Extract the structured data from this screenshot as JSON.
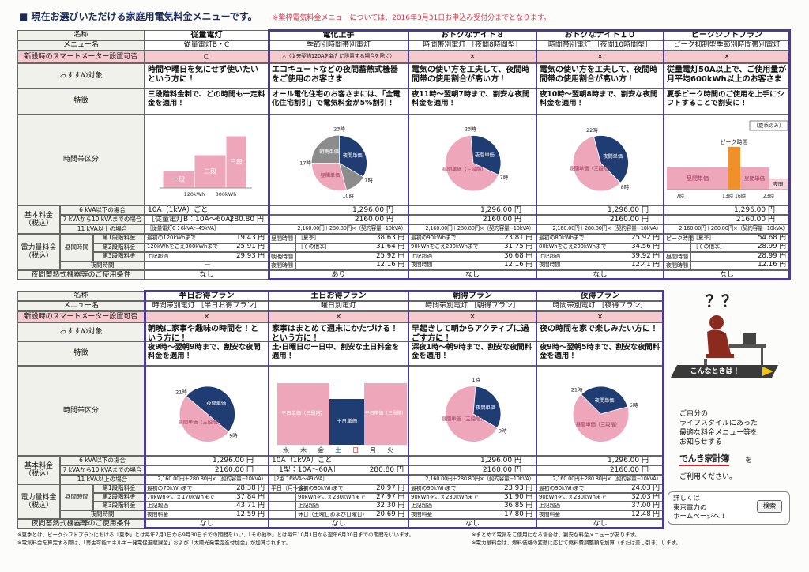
{
  "header": {
    "title": "■ 現在お選びいただける家庭用電気料金メニューです。",
    "note": "※紫枠電気料金メニューについては、2016年3月31日お申込み受付分までとなります。"
  },
  "top": {
    "labels": {
      "name": "名称",
      "menu": "メニュー名",
      "smart": "新設時のスマートメーター設置可否",
      "target": "おすすめ対象",
      "feature": "特徴",
      "chart": "時間帯区分",
      "basic": "基本料金（税込）",
      "basic_rows": [
        "6 kVA以下の場合",
        "7 kVAから10 kVAまでの場合",
        "11 kVA以上の場合"
      ],
      "energy": "電力量料金（税込）",
      "daytime": "昼間時間",
      "steps": [
        "第1段階料金",
        "第2段階料金",
        "第3段階料金"
      ],
      "night": "夜間時間",
      "condition": "夜間蓄熱式機器等のご使用条件"
    },
    "plans": [
      {
        "name": "従量電灯",
        "menu": "従量電灯B・C",
        "smart": "○",
        "target": "時間や曜日を気にせず使いたいという方に！",
        "feature": "三段階料金制で、どの時間も一定料金を適用！",
        "chart": [
          "一段",
          "二段",
          "三段",
          "120kWh",
          "300kWh"
        ],
        "basic": {
          "rows": [
            "10A（1kVA）ごと",
            "［従量電灯B：10A～60A］",
            "［従量電灯C：6kVA～49kVA］"
          ],
          "price": "280.80 円"
        },
        "energy": [
          {
            "text": "最初の120kWhまで",
            "price": "19.43 円"
          },
          {
            "text": "120kWhをこえ300kWhまで",
            "price": "25.91 円"
          },
          {
            "text": "上記超過",
            "price": "29.93 円"
          },
          {
            "text": "―"
          }
        ],
        "condition": "なし"
      },
      {
        "name": "電化上手",
        "menu": "季節別時間帯別電灯",
        "smart": "△（従来契約120Aを新たに設置する場合を除く）",
        "target": "エコキュートなどの夜間蓄熱式機器をご使用のお客さま",
        "feature": "オール電化住宅のお客さまには、「全電化住宅割引」で電気料金が5%割引！",
        "chart": [
          "23時",
          "7時",
          "10時",
          "17時",
          "夜間単価",
          "朝晩単価",
          "昼間単価"
        ],
        "basic": {
          "rows": [
            "1,296.00 円",
            "2160.00 円",
            "2,160.00円＋280.80円×（契約容量−10kVA）"
          ]
        },
        "energy": [
          {
            "label": "昼間時間",
            "text": "［夏季］",
            "price": "38.63 円"
          },
          {
            "text": "［その他季］",
            "price": "31.64 円"
          },
          {
            "label": "朝晩時間",
            "price": "25.92 円"
          },
          {
            "label": "夜間時間",
            "price": "12.16 円"
          }
        ],
        "condition": "あり"
      },
      {
        "name": "おトクなナイト８",
        "menu": "時間帯別電灯 ［夜間8時間型］",
        "smart": "×",
        "target": "電気の使い方を工夫して、夜間時間帯の使用割合が高い方！",
        "feature": "夜11時～翌朝7時まで、割安な夜間料金を適用！",
        "chart": [
          "23時",
          "7時",
          "夜間単価",
          "昼間単価（三段階）"
        ],
        "basic": {
          "rows": [
            "1,296.00 円",
            "2160.00 円",
            "2,160.00円＋280.80円×（契約容量−10kVA）"
          ]
        },
        "energy": [
          {
            "text": "最初の90kWhまで",
            "price": "23.81 円"
          },
          {
            "text": "90kWhをこえ230kWhまで",
            "price": "31.75 円"
          },
          {
            "text": "上記超過",
            "price": "36.68 円"
          },
          {
            "text": "夜間時間",
            "price": "12.16 円"
          }
        ],
        "condition": "なし"
      },
      {
        "name": "おトクなナイト１０",
        "menu": "時間帯別電灯 ［夜間10時間型］",
        "smart": "×",
        "target": "電気の使い方を工夫して、夜間時間帯の使用割合が高い方！",
        "feature": "夜10時～翌朝8時まで、割安な夜間料金を適用！",
        "chart": [
          "22時",
          "8時",
          "夜間単価",
          "昼間単価（三段階）"
        ],
        "basic": {
          "rows": [
            "1,296.00 円",
            "2160.00 円",
            "2,160.00円＋280.80円×（契約容量−10kVA）"
          ]
        },
        "energy": [
          {
            "text": "最初の80kWhまで",
            "price": "25.92 円"
          },
          {
            "text": "80kWhをこえ200kWhまで",
            "price": "34.56 円"
          },
          {
            "text": "上記超過",
            "price": "39.92 円"
          },
          {
            "text": "夜間時間",
            "price": "12.41 円"
          }
        ],
        "condition": "なし"
      },
      {
        "name": "ピークシフトプラン",
        "menu": "ピーク抑制型季節別時間帯別電灯",
        "smart": "×",
        "target": "従量電灯50A以上で、ご使用量が月平均600kWh以上のお客さま",
        "feature": "夏季ピーク時間のご使用を上手にシフトすることで割安に！",
        "chart": [
          "（夏季のみ）",
          "ピーク時間",
          "昼間単価",
          "昼間単価",
          "夜間",
          "7時",
          "13時",
          "16時",
          "23時"
        ],
        "basic": {
          "rows": [
            "1,296.00 円",
            "2160.00 円",
            "2,160.00円＋280.80円×（契約容量−10kVA）"
          ]
        },
        "energy": [
          {
            "label": "ピーク時間",
            "text": "［夏季］",
            "price": "54.68 円"
          },
          {
            "text": "［その他季］",
            "price": "28.99 円"
          },
          {
            "label": "昼間時間",
            "price": "28.99 円"
          },
          {
            "label": "夜間時間",
            "price": "12.16 円"
          }
        ],
        "condition": "なし"
      }
    ]
  },
  "bottom": {
    "labels": {
      "name": "名称",
      "menu": "メニュー名",
      "smart": "新設時のスマートメーター設置可否",
      "target": "おすすめ対象",
      "feature": "特徴",
      "chart": "時間帯区分",
      "basic": "基本料金（税込）",
      "basic_rows": [
        "6 kVA以下の場合",
        "7 kVAから10 kVAまでの場合",
        "11 kVA以上の場合"
      ],
      "energy": "電力量料金（税込）",
      "daytime": "昼間時間",
      "steps": [
        "第1段階料金",
        "第2段階料金",
        "第3段階料金"
      ],
      "night": "夜間時間",
      "condition": "夜間蓄熱式機器等のご使用条件"
    },
    "plans": [
      {
        "name": "半日お得プラン",
        "menu": "時間帯別電灯 ［半日お得プラン］",
        "smart": "×",
        "target": "朝晩に家事や趣味の時間を！という方に！",
        "feature": "夜9時～翌朝9時まで、割安な夜間料金を適用！",
        "chart": [
          "21時",
          "9時",
          "夜間単価",
          "昼間単価（三段階）"
        ],
        "basic": {
          "rows": [
            "1,296.00 円",
            "2160.00 円",
            "2,160.00円＋280.80円×（契約容量−10kVA）"
          ]
        },
        "energy": [
          {
            "text": "最初の70kWhまで",
            "price": "28.38 円"
          },
          {
            "text": "70kWhをこえ170kWhまで",
            "price": "37.84 円"
          },
          {
            "text": "上記超過",
            "price": "43.71 円"
          },
          {
            "text": "夜間料金",
            "price": "12.59 円"
          }
        ],
        "condition": "なし"
      },
      {
        "name": "土日お得プラン",
        "menu": "曜日別電灯",
        "smart": "×",
        "target": "家事はまとめて週末にかたづける！という方に！",
        "feature": "土・日曜日の一日中、割安な土日料金を適用！",
        "chart": [
          "平日単価（三段階）",
          "土日単価",
          "平日単価（三段階）",
          "水",
          "木",
          "金",
          "土",
          "日",
          "月",
          "火"
        ],
        "basic": {
          "rows": [
            "10A（1kVA）ごと",
            "［1型：10A～60A］",
            "［2型：6kVA～49kVA］"
          ],
          "price": "280.80 円"
        },
        "energy": [
          {
            "label": "平日（月～金）",
            "text": "最初の90kWhまで",
            "price": "20.97 円"
          },
          {
            "text": "90kWhをこえ230kWhまで",
            "price": "27.97 円"
          },
          {
            "text": "上記超過",
            "price": "32.30 円"
          },
          {
            "text": "休日（土曜日および日曜日）",
            "price": "20.69 円"
          }
        ],
        "condition": "なし"
      },
      {
        "name": "朝得プラン",
        "menu": "時間帯別電灯 ［朝得プラン］",
        "smart": "×",
        "target": "早起きして朝からアクティブに過ごす方に！",
        "feature": "深夜1時～朝9時まで、割安な夜間料金を適用！",
        "chart": [
          "1時",
          "9時",
          "夜間単価",
          "昼間単価（三段階）"
        ],
        "basic": {
          "rows": [
            "1,296.00 円",
            "2160.00 円",
            "2,160.00円＋280.80円×（契約容量−10kVA）"
          ]
        },
        "energy": [
          {
            "text": "最初の90kWhまで",
            "price": "23.93 円"
          },
          {
            "text": "90kWhをこえ230kWhまで",
            "price": "31.90 円"
          },
          {
            "text": "上記超過",
            "price": "36.85 円"
          },
          {
            "text": "夜間料金",
            "price": "17.80 円"
          }
        ],
        "condition": "なし"
      },
      {
        "name": "夜得プラン",
        "menu": "時間帯別電灯 ［夜得プラン］",
        "smart": "×",
        "target": "夜の時間を家で楽しみたい方に！",
        "feature": "夜9時～翌朝5時まで、割安な夜間料金を適用！",
        "chart": [
          "21時",
          "5時",
          "夜間単価",
          "昼間単価（三段階）"
        ],
        "basic": {
          "rows": [
            "1,296.00 円",
            "2160.00 円",
            "2,160.00円＋280.80円×（契約容量−10kVA）"
          ]
        },
        "energy": [
          {
            "text": "最初の90kWhまで",
            "price": "24.03 円"
          },
          {
            "text": "90kWhをこえ230kWhまで",
            "price": "32.03 円"
          },
          {
            "text": "上記超過",
            "price": "37.00 円"
          },
          {
            "text": "夜間料金",
            "price": "12.48 円"
          }
        ],
        "condition": "なし"
      }
    ]
  },
  "side": {
    "question": "？？",
    "banner": "こんなときは！",
    "text": [
      "ご自分の",
      "ライフスタイルにあった",
      "最適な料金メニュー等を",
      "お知らせする"
    ],
    "logo": "でんき家計簿",
    "wo": "を",
    "use": "ご利用ください。",
    "more": [
      "詳しくは",
      "東京電力の",
      "ホームページへ！"
    ],
    "search": "検索"
  },
  "footnotes": [
    "※夏季とは、ピークシフトプランにおける「夏季」とは毎年7月1日から9月30日までの期間をいい、「その他季」とは毎年10月1日から翌年6月30日までの期間をいいます。",
    "※電気料金を算定する際は、「再生可能エネルギー発電促進賦課金」および「太陽光発電促進付加金」が加算されます。",
    "※まとめて電気をご使用になる場合は、割安な料金メニューがあります。",
    "※電力量料金は、燃料価格の変動に応じて燃料費調整額を加算（または差し引き）します。"
  ]
}
